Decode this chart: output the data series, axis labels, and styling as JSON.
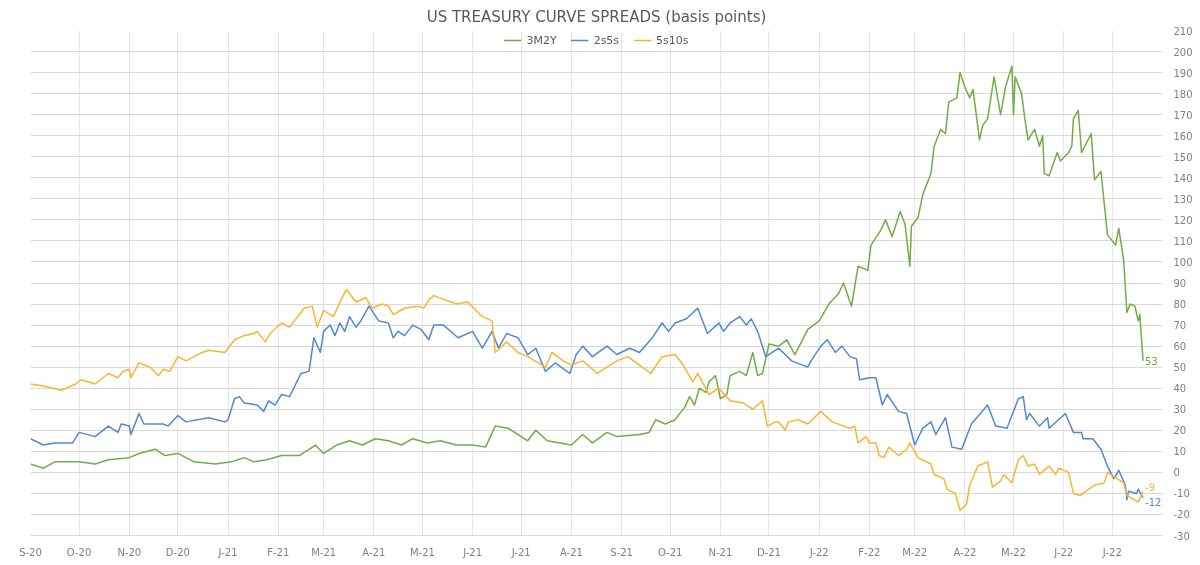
{
  "chart_data": {
    "type": "line",
    "title": "US TREASURY CURVE SPREADS (basis points)",
    "xlim": [
      "2020-09-01",
      "2022-08-01"
    ],
    "xticks": [
      {
        "value": "2020-09-01",
        "label": "S-20"
      },
      {
        "value": "2020-10-01",
        "label": "O-20"
      },
      {
        "value": "2020-11-01",
        "label": "N-20"
      },
      {
        "value": "2020-12-01",
        "label": "D-20"
      },
      {
        "value": "2021-01-01",
        "label": "J-21"
      },
      {
        "value": "2021-02-01",
        "label": "F-21"
      },
      {
        "value": "2021-03-01",
        "label": "M-21"
      },
      {
        "value": "2021-04-01",
        "label": "A-21"
      },
      {
        "value": "2021-05-01",
        "label": "M-21"
      },
      {
        "value": "2021-06-01",
        "label": "J-21"
      },
      {
        "value": "2021-07-01",
        "label": "J-21"
      },
      {
        "value": "2021-08-01",
        "label": "A-21"
      },
      {
        "value": "2021-09-01",
        "label": "S-21"
      },
      {
        "value": "2021-10-01",
        "label": "O-21"
      },
      {
        "value": "2021-11-01",
        "label": "N-21"
      },
      {
        "value": "2021-12-01",
        "label": "D-21"
      },
      {
        "value": "2022-01-01",
        "label": "J-22"
      },
      {
        "value": "2022-02-01",
        "label": "F-22"
      },
      {
        "value": "2022-03-01",
        "label": "M-22"
      },
      {
        "value": "2022-04-01",
        "label": "A-22"
      },
      {
        "value": "2022-05-01",
        "label": "M-22"
      },
      {
        "value": "2022-06-01",
        "label": "J-22"
      },
      {
        "value": "2022-07-01",
        "label": "J-22"
      }
    ],
    "ylim": [
      -30,
      210
    ],
    "yticks": [
      -30,
      -20,
      -10,
      0,
      10,
      20,
      30,
      40,
      50,
      60,
      70,
      80,
      90,
      100,
      110,
      120,
      130,
      140,
      150,
      160,
      170,
      180,
      190,
      200,
      210
    ],
    "grid": true,
    "legend": "top",
    "series": [
      {
        "name": "3M2Y",
        "color": "#70ad47",
        "x": [
          "2020-09-01",
          "2020-09-09",
          "2020-09-16",
          "2020-10-01",
          "2020-10-11",
          "2020-10-19",
          "2020-11-01",
          "2020-11-07",
          "2020-11-17",
          "2020-11-23",
          "2020-12-01",
          "2020-12-11",
          "2020-12-24",
          "2021-01-03",
          "2021-01-11",
          "2021-01-17",
          "2021-01-25",
          "2021-02-03",
          "2021-02-14",
          "2021-02-24",
          "2021-03-01",
          "2021-03-09",
          "2021-03-17",
          "2021-03-25",
          "2021-04-02",
          "2021-04-10",
          "2021-04-18",
          "2021-04-25",
          "2021-05-04",
          "2021-05-12",
          "2021-05-22",
          "2021-06-01",
          "2021-06-09",
          "2021-06-15",
          "2021-06-23",
          "2021-07-05",
          "2021-07-10",
          "2021-07-17",
          "2021-08-01",
          "2021-08-08",
          "2021-08-14",
          "2021-08-23",
          "2021-08-29",
          "2021-09-12",
          "2021-09-18",
          "2021-09-22",
          "2021-09-28",
          "2021-10-04",
          "2021-10-10",
          "2021-10-13",
          "2021-10-16",
          "2021-10-19",
          "2021-10-23",
          "2021-10-25",
          "2021-10-29",
          "2021-11-01",
          "2021-11-05",
          "2021-11-07",
          "2021-11-13",
          "2021-11-17",
          "2021-11-21",
          "2021-11-24",
          "2021-11-27",
          "2021-12-01",
          "2021-12-07",
          "2021-12-12",
          "2021-12-17",
          "2021-12-25",
          "2022-01-01",
          "2022-01-07",
          "2022-01-13",
          "2022-01-16",
          "2022-01-21",
          "2022-01-25",
          "2022-01-31",
          "2022-02-02",
          "2022-02-08",
          "2022-02-11",
          "2022-02-15",
          "2022-02-20",
          "2022-02-23",
          "2022-02-26",
          "2022-02-27",
          "2022-03-03",
          "2022-03-06",
          "2022-03-11",
          "2022-03-13",
          "2022-03-17",
          "2022-03-20",
          "2022-03-22",
          "2022-03-27",
          "2022-03-29",
          "2022-04-01",
          "2022-04-04",
          "2022-04-06",
          "2022-04-10",
          "2022-04-12",
          "2022-04-15",
          "2022-04-19",
          "2022-04-23",
          "2022-04-26",
          "2022-04-30",
          "2022-05-01",
          "2022-05-02",
          "2022-05-06",
          "2022-05-08",
          "2022-05-10",
          "2022-05-14",
          "2022-05-17",
          "2022-05-19",
          "2022-05-20",
          "2022-05-23",
          "2022-05-28",
          "2022-05-30",
          "2022-06-04",
          "2022-06-06",
          "2022-06-07",
          "2022-06-10",
          "2022-06-12",
          "2022-06-18",
          "2022-06-20",
          "2022-06-24",
          "2022-06-28",
          "2022-07-03",
          "2022-07-05",
          "2022-07-08",
          "2022-07-10",
          "2022-07-12",
          "2022-07-15",
          "2022-07-17",
          "2022-07-18",
          "2022-07-20"
        ],
        "values": [
          4,
          2,
          5,
          5,
          4,
          6,
          7,
          9,
          11,
          8,
          9,
          5,
          4,
          5,
          7,
          5,
          6,
          8,
          8,
          13,
          9,
          13,
          15,
          13,
          16,
          15,
          13,
          16,
          14,
          15,
          13,
          13,
          12,
          22,
          21,
          15,
          20,
          15,
          13,
          18,
          14,
          19,
          17,
          18,
          19,
          25,
          23,
          25,
          31,
          36,
          32,
          40,
          38,
          43,
          46,
          35,
          37,
          46,
          48,
          46,
          57,
          46,
          47,
          61,
          60,
          63,
          56,
          68,
          72,
          80,
          85,
          90,
          79,
          98,
          96,
          108,
          115,
          120,
          112,
          124,
          118,
          98,
          117,
          121,
          132,
          142,
          155,
          163,
          161,
          176,
          178,
          190,
          183,
          178,
          182,
          158,
          165,
          168,
          188,
          170,
          183,
          193,
          170,
          188,
          180,
          168,
          158,
          163,
          155,
          160,
          142,
          141,
          152,
          148,
          152,
          155,
          168,
          172,
          152,
          161,
          139,
          143,
          113,
          108,
          116,
          101,
          76,
          80,
          79,
          72,
          75,
          53
        ]
      },
      {
        "name": "2s5s",
        "color": "#4f88d3",
        "x": [
          "2020-09-01",
          "2020-09-09",
          "2020-09-16",
          "2020-09-27",
          "2020-10-01",
          "2020-10-11",
          "2020-10-19",
          "2020-10-25",
          "2020-10-27",
          "2020-11-01",
          "2020-11-02",
          "2020-11-07",
          "2020-11-10",
          "2020-11-22",
          "2020-11-25",
          "2020-12-01",
          "2020-12-06",
          "2020-12-20",
          "2020-12-30",
          "2021-01-01",
          "2021-01-05",
          "2021-01-08",
          "2021-01-11",
          "2021-01-19",
          "2021-01-23",
          "2021-01-26",
          "2021-01-30",
          "2021-02-03",
          "2021-02-08",
          "2021-02-15",
          "2021-02-20",
          "2021-02-23",
          "2021-02-27",
          "2021-03-01",
          "2021-03-05",
          "2021-03-08",
          "2021-03-11",
          "2021-03-14",
          "2021-03-17",
          "2021-03-21",
          "2021-03-24",
          "2021-03-29",
          "2021-04-04",
          "2021-04-10",
          "2021-04-13",
          "2021-04-16",
          "2021-04-20",
          "2021-04-25",
          "2021-04-30",
          "2021-05-05",
          "2021-05-08",
          "2021-05-14",
          "2021-05-23",
          "2021-06-01",
          "2021-06-07",
          "2021-06-13",
          "2021-06-17",
          "2021-06-22",
          "2021-06-29",
          "2021-07-05",
          "2021-07-10",
          "2021-07-16",
          "2021-07-22",
          "2021-07-31",
          "2021-08-04",
          "2021-08-08",
          "2021-08-14",
          "2021-08-23",
          "2021-08-29",
          "2021-09-06",
          "2021-09-12",
          "2021-09-20",
          "2021-09-26",
          "2021-09-30",
          "2021-10-04",
          "2021-10-11",
          "2021-10-18",
          "2021-10-24",
          "2021-10-31",
          "2021-11-03",
          "2021-11-07",
          "2021-11-13",
          "2021-11-17",
          "2021-11-20",
          "2021-11-24",
          "2021-11-29",
          "2021-12-07",
          "2021-12-15",
          "2021-12-25",
          "2021-12-27",
          "2022-01-02",
          "2022-01-06",
          "2022-01-11",
          "2022-01-15",
          "2022-01-20",
          "2022-01-24",
          "2022-01-26",
          "2022-02-01",
          "2022-02-05",
          "2022-02-09",
          "2022-02-12",
          "2022-02-19",
          "2022-02-24",
          "2022-03-01",
          "2022-03-06",
          "2022-03-11",
          "2022-03-14",
          "2022-03-20",
          "2022-03-24",
          "2022-03-30",
          "2022-04-05",
          "2022-04-15",
          "2022-04-20",
          "2022-04-27",
          "2022-04-30",
          "2022-05-04",
          "2022-05-07",
          "2022-05-09",
          "2022-05-11",
          "2022-05-17",
          "2022-05-22",
          "2022-05-23",
          "2022-06-02",
          "2022-06-07",
          "2022-06-12",
          "2022-06-13",
          "2022-06-19",
          "2022-06-24",
          "2022-06-28",
          "2022-07-02",
          "2022-07-05",
          "2022-07-09",
          "2022-07-10",
          "2022-07-11",
          "2022-07-16",
          "2022-07-17",
          "2022-07-20"
        ],
        "values": [
          16,
          13,
          14,
          14,
          19,
          17,
          22,
          19,
          23,
          22,
          18,
          28,
          23,
          23,
          22,
          27,
          24,
          26,
          24,
          25,
          35,
          36,
          33,
          32,
          29,
          34,
          32,
          37,
          36,
          47,
          48,
          64,
          57,
          67,
          70,
          65,
          71,
          67,
          74,
          69,
          72,
          79,
          72,
          71,
          64,
          67,
          65,
          70,
          68,
          63,
          70,
          70,
          64,
          67,
          59,
          67,
          59,
          66,
          64,
          56,
          59,
          48,
          52,
          47,
          56,
          60,
          55,
          60,
          56,
          59,
          57,
          64,
          71,
          67,
          71,
          73,
          78,
          66,
          71,
          67,
          71,
          74,
          70,
          73,
          67,
          55,
          59,
          53,
          50,
          53,
          60,
          63,
          57,
          60,
          55,
          54,
          44,
          45,
          45,
          32,
          37,
          29,
          28,
          13,
          21,
          24,
          18,
          26,
          12,
          11,
          23,
          32,
          22,
          21,
          27,
          35,
          36,
          25,
          28,
          22,
          26,
          21,
          28,
          19,
          19,
          16,
          16,
          11,
          3,
          -3,
          1,
          -6,
          -13,
          -9,
          -10,
          -8,
          -12
        ]
      },
      {
        "name": "5s10s",
        "color": "#fbb431",
        "x": [
          "2020-09-01",
          "2020-09-09",
          "2020-09-20",
          "2020-09-29",
          "2020-10-02",
          "2020-10-11",
          "2020-10-19",
          "2020-10-25",
          "2020-10-28",
          "2020-11-01",
          "2020-11-02",
          "2020-11-07",
          "2020-11-14",
          "2020-11-19",
          "2020-11-22",
          "2020-11-26",
          "2020-12-01",
          "2020-12-06",
          "2020-12-16",
          "2020-12-20",
          "2020-12-30",
          "2021-01-05",
          "2021-01-11",
          "2021-01-17",
          "2021-01-19",
          "2021-01-24",
          "2021-01-27",
          "2021-02-03",
          "2021-02-08",
          "2021-02-11",
          "2021-02-17",
          "2021-02-22",
          "2021-02-25",
          "2021-03-01",
          "2021-03-07",
          "2021-03-10",
          "2021-03-15",
          "2021-03-21",
          "2021-03-27",
          "2021-03-31",
          "2021-04-06",
          "2021-04-10",
          "2021-04-13",
          "2021-04-20",
          "2021-04-28",
          "2021-05-02",
          "2021-05-05",
          "2021-05-08",
          "2021-05-22",
          "2021-05-29",
          "2021-06-07",
          "2021-06-13",
          "2021-06-15",
          "2021-06-22",
          "2021-06-29",
          "2021-07-05",
          "2021-07-16",
          "2021-07-20",
          "2021-07-27",
          "2021-08-01",
          "2021-08-08",
          "2021-08-17",
          "2021-08-29",
          "2021-09-05",
          "2021-09-12",
          "2021-09-19",
          "2021-09-26",
          "2021-10-04",
          "2021-10-09",
          "2021-10-15",
          "2021-10-18",
          "2021-10-25",
          "2021-10-31",
          "2021-11-07",
          "2021-11-15",
          "2021-11-21",
          "2021-11-27",
          "2021-11-30",
          "2021-12-05",
          "2021-12-07",
          "2021-12-11",
          "2021-12-13",
          "2021-12-19",
          "2021-12-25",
          "2022-01-02",
          "2022-01-09",
          "2022-01-20",
          "2022-01-23",
          "2022-01-25",
          "2022-01-30",
          "2022-02-01",
          "2022-02-05",
          "2022-02-07",
          "2022-02-10",
          "2022-02-13",
          "2022-02-19",
          "2022-02-24",
          "2022-02-26",
          "2022-03-03",
          "2022-03-11",
          "2022-03-13",
          "2022-03-19",
          "2022-03-21",
          "2022-03-26",
          "2022-03-29",
          "2022-04-02",
          "2022-04-04",
          "2022-04-09",
          "2022-04-15",
          "2022-04-18",
          "2022-04-23",
          "2022-04-25",
          "2022-04-30",
          "2022-05-04",
          "2022-05-07",
          "2022-05-10",
          "2022-05-14",
          "2022-05-17",
          "2022-05-23",
          "2022-05-27",
          "2022-05-29",
          "2022-06-04",
          "2022-06-07",
          "2022-06-11",
          "2022-06-20",
          "2022-06-26",
          "2022-06-28",
          "2022-07-08",
          "2022-07-10",
          "2022-07-17",
          "2022-07-20"
        ],
        "values": [
          42,
          41,
          39,
          42,
          44,
          42,
          47,
          45,
          48,
          49,
          45,
          52,
          50,
          46,
          49,
          48,
          55,
          53,
          57,
          58,
          57,
          63,
          65,
          66,
          67,
          62,
          66,
          71,
          69,
          72,
          78,
          79,
          69,
          77,
          74,
          79,
          87,
          81,
          83,
          78,
          80,
          79,
          75,
          78,
          79,
          78,
          82,
          84,
          80,
          81,
          74,
          72,
          57,
          62,
          57,
          55,
          50,
          57,
          53,
          51,
          53,
          47,
          53,
          55,
          51,
          47,
          55,
          56,
          51,
          43,
          47,
          37,
          40,
          34,
          33,
          30,
          34,
          22,
          24,
          24,
          20,
          24,
          25,
          23,
          29,
          24,
          21,
          22,
          14,
          17,
          14,
          14,
          8,
          7,
          12,
          8,
          11,
          14,
          7,
          4,
          -1,
          -3,
          -8,
          -10,
          -18,
          -15,
          -6,
          3,
          5,
          -7,
          -4,
          -1,
          -5,
          6,
          8,
          3,
          4,
          -1,
          3,
          -1,
          2,
          0,
          -10,
          -11,
          -6,
          -5,
          0,
          -5,
          -11,
          -14,
          -9
        ]
      }
    ],
    "annotations": [
      {
        "text": "53",
        "x": "2022-07-20",
        "y": 53
      },
      {
        "text": "-12",
        "x": "2022-07-20",
        "y": -12
      },
      {
        "text": "-9",
        "x": "2022-07-20",
        "y": -9
      }
    ]
  }
}
